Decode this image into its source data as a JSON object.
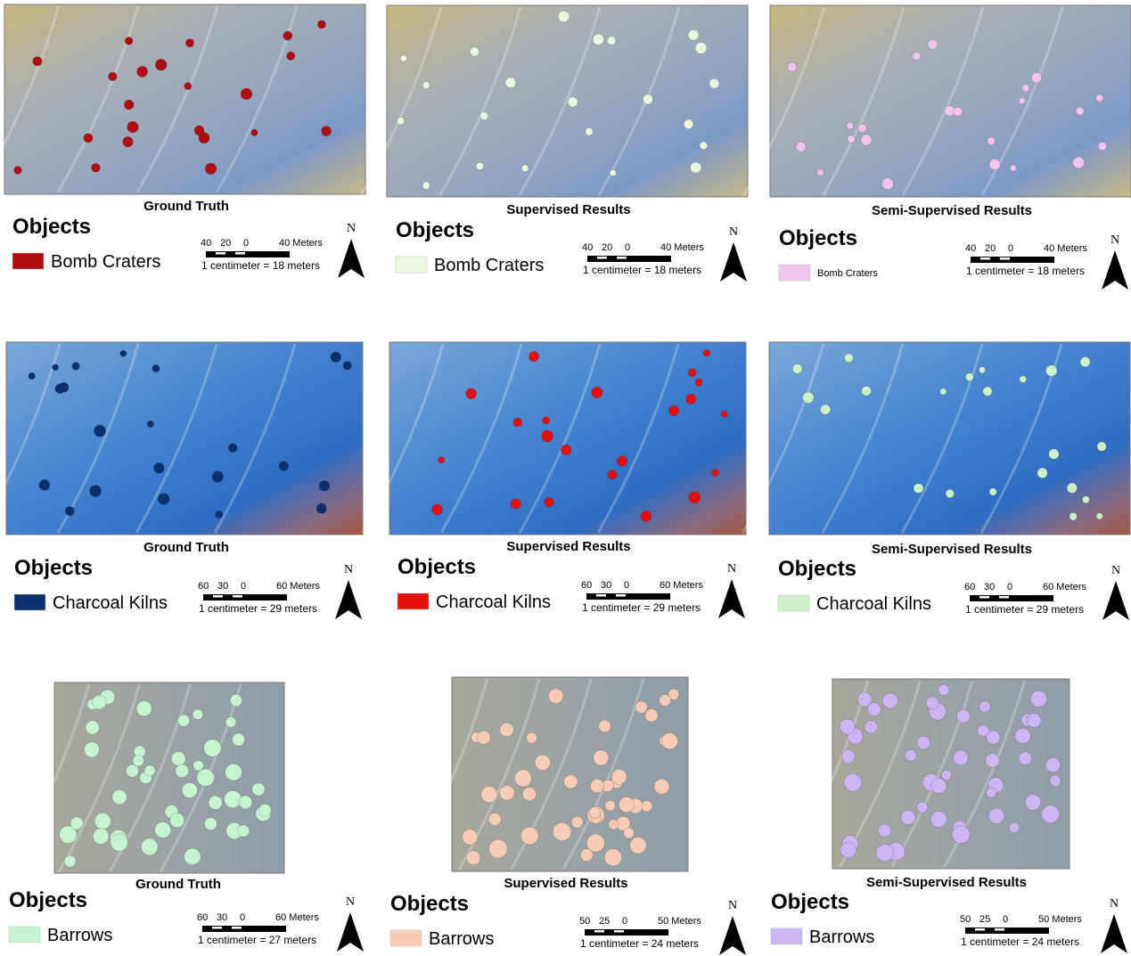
{
  "panels": [
    {
      "caption": "Ground Truth",
      "legend_title": "Objects",
      "legend_label": "Bomb Craters",
      "legend_color": "#b00d10",
      "scale_labels": [
        "40",
        "20",
        "0",
        "40 Meters"
      ],
      "scale_text": "1 centimeter = 18 meters",
      "north": "N"
    },
    {
      "caption": "Supervised Results",
      "legend_title": "Objects",
      "legend_label": "Bomb Craters",
      "legend_color": "#eaf8e0",
      "scale_labels": [
        "40",
        "20",
        "0",
        "40 Meters"
      ],
      "scale_text": "1 centimeter = 18 meters",
      "north": "N"
    },
    {
      "caption": "Semi-Supervised Results",
      "legend_title": "Objects",
      "legend_label": "Bomb Craters",
      "legend_color": "#f4c4f0",
      "scale_labels": [
        "40",
        "20",
        "0",
        "40 Meters"
      ],
      "scale_text": "1 centimeter = 18 meters",
      "north": "N"
    },
    {
      "caption": "Ground Truth",
      "legend_title": "Objects",
      "legend_label": "Charcoal Kilns",
      "legend_color": "#0c2f6e",
      "scale_labels": [
        "60",
        "30",
        "0",
        "60 Meters"
      ],
      "scale_text": "1 centimeter = 29 meters",
      "north": "N"
    },
    {
      "caption": "Supervised Results",
      "legend_title": "Objects",
      "legend_label": "Charcoal Kilns",
      "legend_color": "#e3100c",
      "scale_labels": [
        "60",
        "30",
        "0",
        "60 Meters"
      ],
      "scale_text": "1 centimeter = 29 meters",
      "north": "N"
    },
    {
      "caption": "Semi-Supervised Results",
      "legend_title": "Objects",
      "legend_label": "Charcoal Kilns",
      "legend_color": "#cdf0c8",
      "scale_labels": [
        "60",
        "30",
        "0",
        "60 Meters"
      ],
      "scale_text": "1 centimeter = 29 meters",
      "north": "N"
    },
    {
      "caption": "Ground Truth",
      "legend_title": "Objects",
      "legend_label": "Barrows",
      "legend_color": "#c4f5cf",
      "scale_labels": [
        "60",
        "30",
        "0",
        "60 Meters"
      ],
      "scale_text": "1 centimeter = 27 meters",
      "north": "N"
    },
    {
      "caption": "Supervised Results",
      "legend_title": "Objects",
      "legend_label": "Barrows",
      "legend_color": "#f6cdb4",
      "scale_labels": [
        "50",
        "25",
        "0",
        "50 Meters"
      ],
      "scale_text": "1 centimeter = 24 meters",
      "north": "N"
    },
    {
      "caption": "Semi-Supervised Results",
      "legend_title": "Objects",
      "legend_label": "Barrows",
      "legend_color": "#cdb4f2",
      "scale_labels": [
        "50",
        "25",
        "0",
        "50 Meters"
      ],
      "scale_text": "1 centimeter = 24 meters",
      "north": "N"
    }
  ]
}
